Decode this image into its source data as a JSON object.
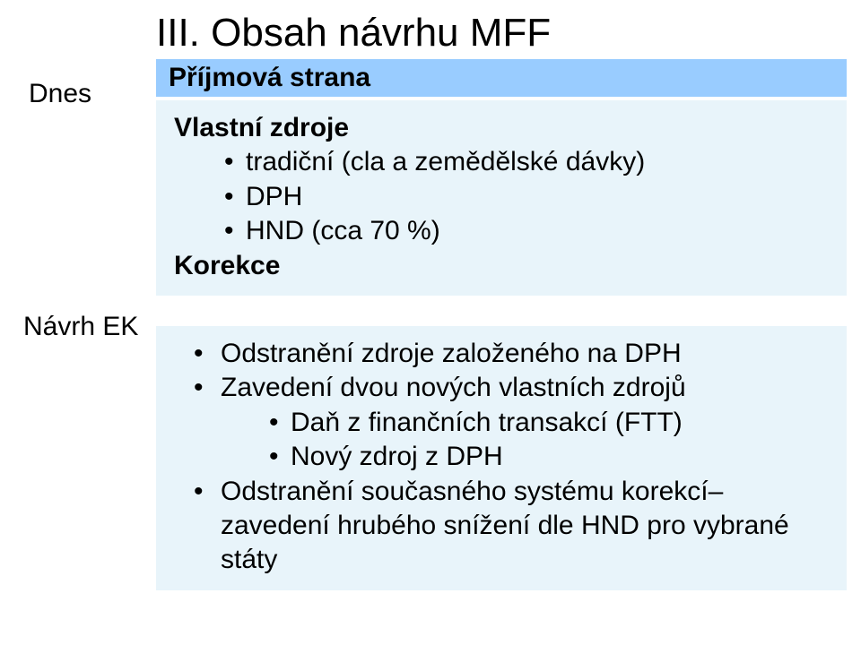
{
  "title": "III. Obsah návrhu MFF",
  "subtitle": "Příjmová strana",
  "labels": {
    "dnes": "Dnes",
    "navrh_ek": "Návrh EK"
  },
  "block1": {
    "heading1": "Vlastní zdroje",
    "items1": [
      "tradiční (cla a zemědělské dávky)",
      "DPH",
      "HND (cca 70 %)"
    ],
    "heading2": "Korekce"
  },
  "block2": {
    "items": [
      {
        "text": "Odstranění zdroje založeného na DPH"
      },
      {
        "text": "Zavedení dvou nových vlastních zdrojů",
        "subitems": [
          "Daň z finančních transakcí (FTT)",
          "Nový zdroj z DPH"
        ]
      },
      {
        "text": "Odstranění současného systému korekcí– zavedení hrubého  snížení dle HND pro vybrané státy"
      }
    ]
  },
  "colors": {
    "background": "#ffffff",
    "subtitle_band": "#99ccff",
    "content_block": "#e8f4fa",
    "text": "#000000"
  },
  "typography": {
    "title_fontsize": 44,
    "body_fontsize": 30,
    "font_family": "Arial"
  }
}
